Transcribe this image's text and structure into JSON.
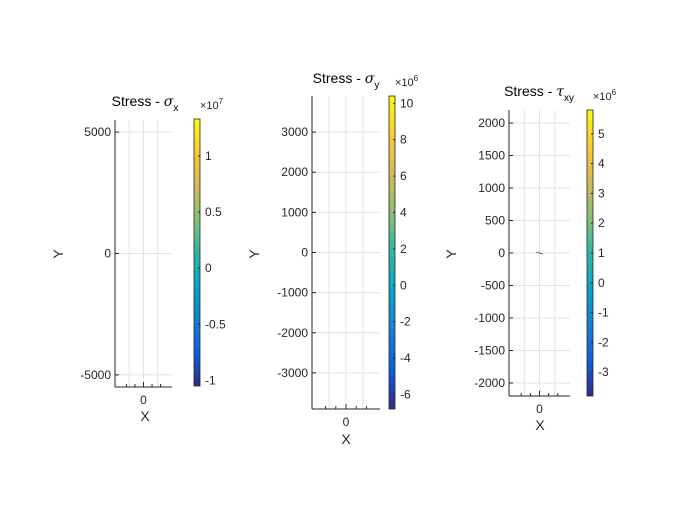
{
  "chart_data": [
    {
      "type": "heatmap",
      "title": "Stress - ",
      "title_symbol": "σ",
      "title_subscript": "x",
      "xlabel": "X",
      "ylabel": "Y",
      "xlim": [
        -1,
        1
      ],
      "ylim": [
        -5500,
        5500
      ],
      "xticks": [
        0
      ],
      "xtick_labels": [
        "0"
      ],
      "yticks": [
        -5000,
        0,
        5000
      ],
      "ytick_labels": [
        "-5000",
        "0",
        "5000"
      ],
      "grid": true,
      "colorbar": {
        "exponent_base": "×10",
        "exponent": "7",
        "clim": [
          -1.05,
          1.33
        ],
        "ticks": [
          -1,
          -0.5,
          0,
          0.5,
          1
        ],
        "tick_labels": [
          "-1",
          "-0.5",
          "0",
          "0.5",
          "1"
        ]
      }
    },
    {
      "type": "heatmap",
      "title": "Stress - ",
      "title_symbol": "σ",
      "title_subscript": "y",
      "xlabel": "X",
      "ylabel": "Y",
      "xlim": [
        -1,
        1
      ],
      "ylim": [
        -3900,
        3900
      ],
      "xticks": [
        0
      ],
      "xtick_labels": [
        "0"
      ],
      "yticks": [
        -3000,
        -2000,
        -1000,
        0,
        1000,
        2000,
        3000
      ],
      "ytick_labels": [
        "-3000",
        "-2000",
        "-1000",
        "0",
        "1000",
        "2000",
        "3000"
      ],
      "grid": true,
      "colorbar": {
        "exponent_base": "×10",
        "exponent": "6",
        "clim": [
          -6.8,
          10.4
        ],
        "ticks": [
          -6,
          -4,
          -2,
          0,
          2,
          4,
          6,
          8,
          10
        ],
        "tick_labels": [
          "-6",
          "-4",
          "-2",
          "0",
          "2",
          "4",
          "6",
          "8",
          "10"
        ]
      }
    },
    {
      "type": "heatmap",
      "title": "Stress - ",
      "title_symbol": "τ",
      "title_subscript": "xy",
      "xlabel": "X",
      "ylabel": "Y",
      "xlim": [
        -1,
        1
      ],
      "ylim": [
        -2200,
        2200
      ],
      "xticks": [
        0
      ],
      "xtick_labels": [
        "0"
      ],
      "yticks": [
        -2000,
        -1500,
        -1000,
        -500,
        0,
        500,
        1000,
        1500,
        2000
      ],
      "ytick_labels": [
        "-2000",
        "-1500",
        "-1000",
        "-500",
        "0",
        "500",
        "1000",
        "1500",
        "2000"
      ],
      "grid": true,
      "colorbar": {
        "exponent_base": "×10",
        "exponent": "6",
        "clim": [
          -3.8,
          5.8
        ],
        "ticks": [
          -3,
          -2,
          -1,
          0,
          1,
          2,
          3,
          4,
          5
        ],
        "tick_labels": [
          "-3",
          "-2",
          "-1",
          "0",
          "1",
          "2",
          "3",
          "4",
          "5"
        ]
      }
    }
  ]
}
